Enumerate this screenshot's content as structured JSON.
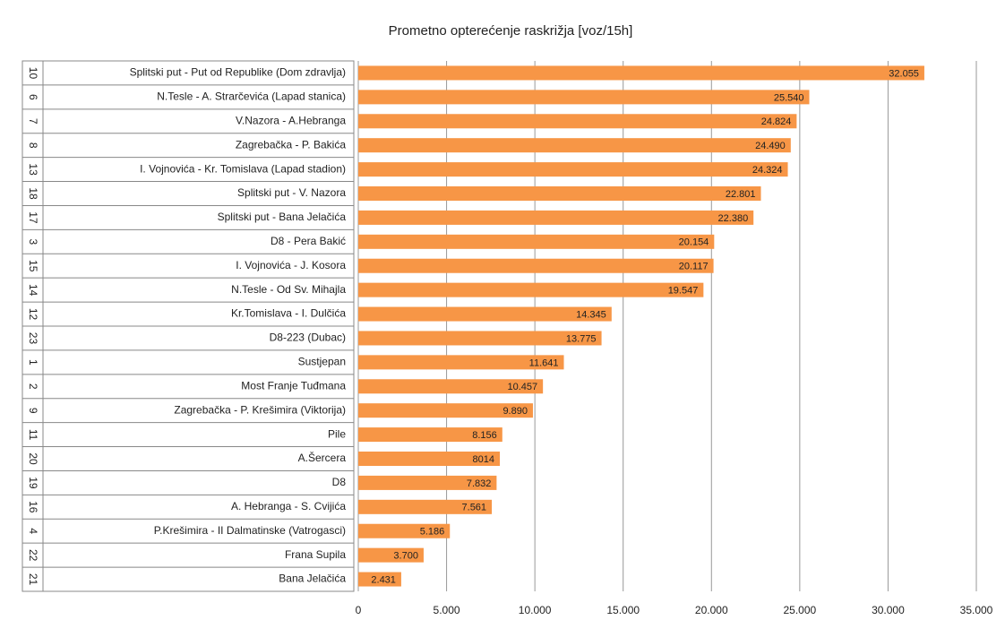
{
  "chart_data": {
    "type": "bar",
    "orientation": "horizontal",
    "title": "Prometno opterećenje raskrižja [voz/15h]",
    "category_ids": [
      "10",
      "6",
      "7",
      "8",
      "13",
      "18",
      "17",
      "3",
      "15",
      "14",
      "12",
      "23",
      "1",
      "2",
      "9",
      "11",
      "20",
      "19",
      "16",
      "4",
      "22",
      "21"
    ],
    "categories": [
      "Splitski put - Put od Republike (Dom zdravlja)",
      "N.Tesle - A. Strarčevića (Lapad stanica)",
      "V.Nazora - A.Hebranga",
      "Zagrebačka - P. Bakića",
      "I. Vojnovića - Kr. Tomislava (Lapad stadion)",
      "Splitski put - V. Nazora",
      "Splitski put - Bana Jelačića",
      "D8 - Pera Bakić",
      "I. Vojnovića - J. Kosora",
      "N.Tesle - Od Sv. Mihajla",
      "Kr.Tomislava - I. Dulčića",
      "D8-223 (Dubac)",
      "Sustjepan",
      "Most Franje Tuđmana",
      "Zagrebačka - P. Krešimira (Viktorija)",
      "Pile",
      "A.Šercera",
      "D8",
      "A. Hebranga - S. Cvijića",
      "P.Krešimira - II Dalmatinske (Vatrogasci)",
      "Frana Supila",
      "Bana Jelačića"
    ],
    "values": [
      32055,
      25540,
      24824,
      24490,
      24324,
      22801,
      22380,
      20154,
      20117,
      19547,
      14345,
      13775,
      11641,
      10457,
      9890,
      8156,
      8014,
      7832,
      7561,
      5186,
      3700,
      2431
    ],
    "value_labels": [
      "32.055",
      "25.540",
      "24.824",
      "24.490",
      "24.324",
      "22.801",
      "22.380",
      "20.154",
      "20.117",
      "19.547",
      "14.345",
      "13.775",
      "11.641",
      "10.457",
      "9.890",
      "8.156",
      "8014",
      "7.832",
      "7.561",
      "5.186",
      "3.700",
      "2.431"
    ],
    "color": "#f79646",
    "xlim": [
      0,
      35000
    ],
    "xticks": [
      0,
      {
        "value": 5000,
        "label": "5.000"
      },
      {
        "value": 10000,
        "label": "10.000"
      },
      {
        "value": 15000,
        "label": "15.000"
      },
      {
        "value": 20000,
        "label": "20.000"
      },
      {
        "value": 25000,
        "label": "25.000"
      },
      {
        "value": 30000,
        "label": "30.000"
      },
      {
        "value": 35000,
        "label": "35.000"
      }
    ],
    "grid": true
  }
}
